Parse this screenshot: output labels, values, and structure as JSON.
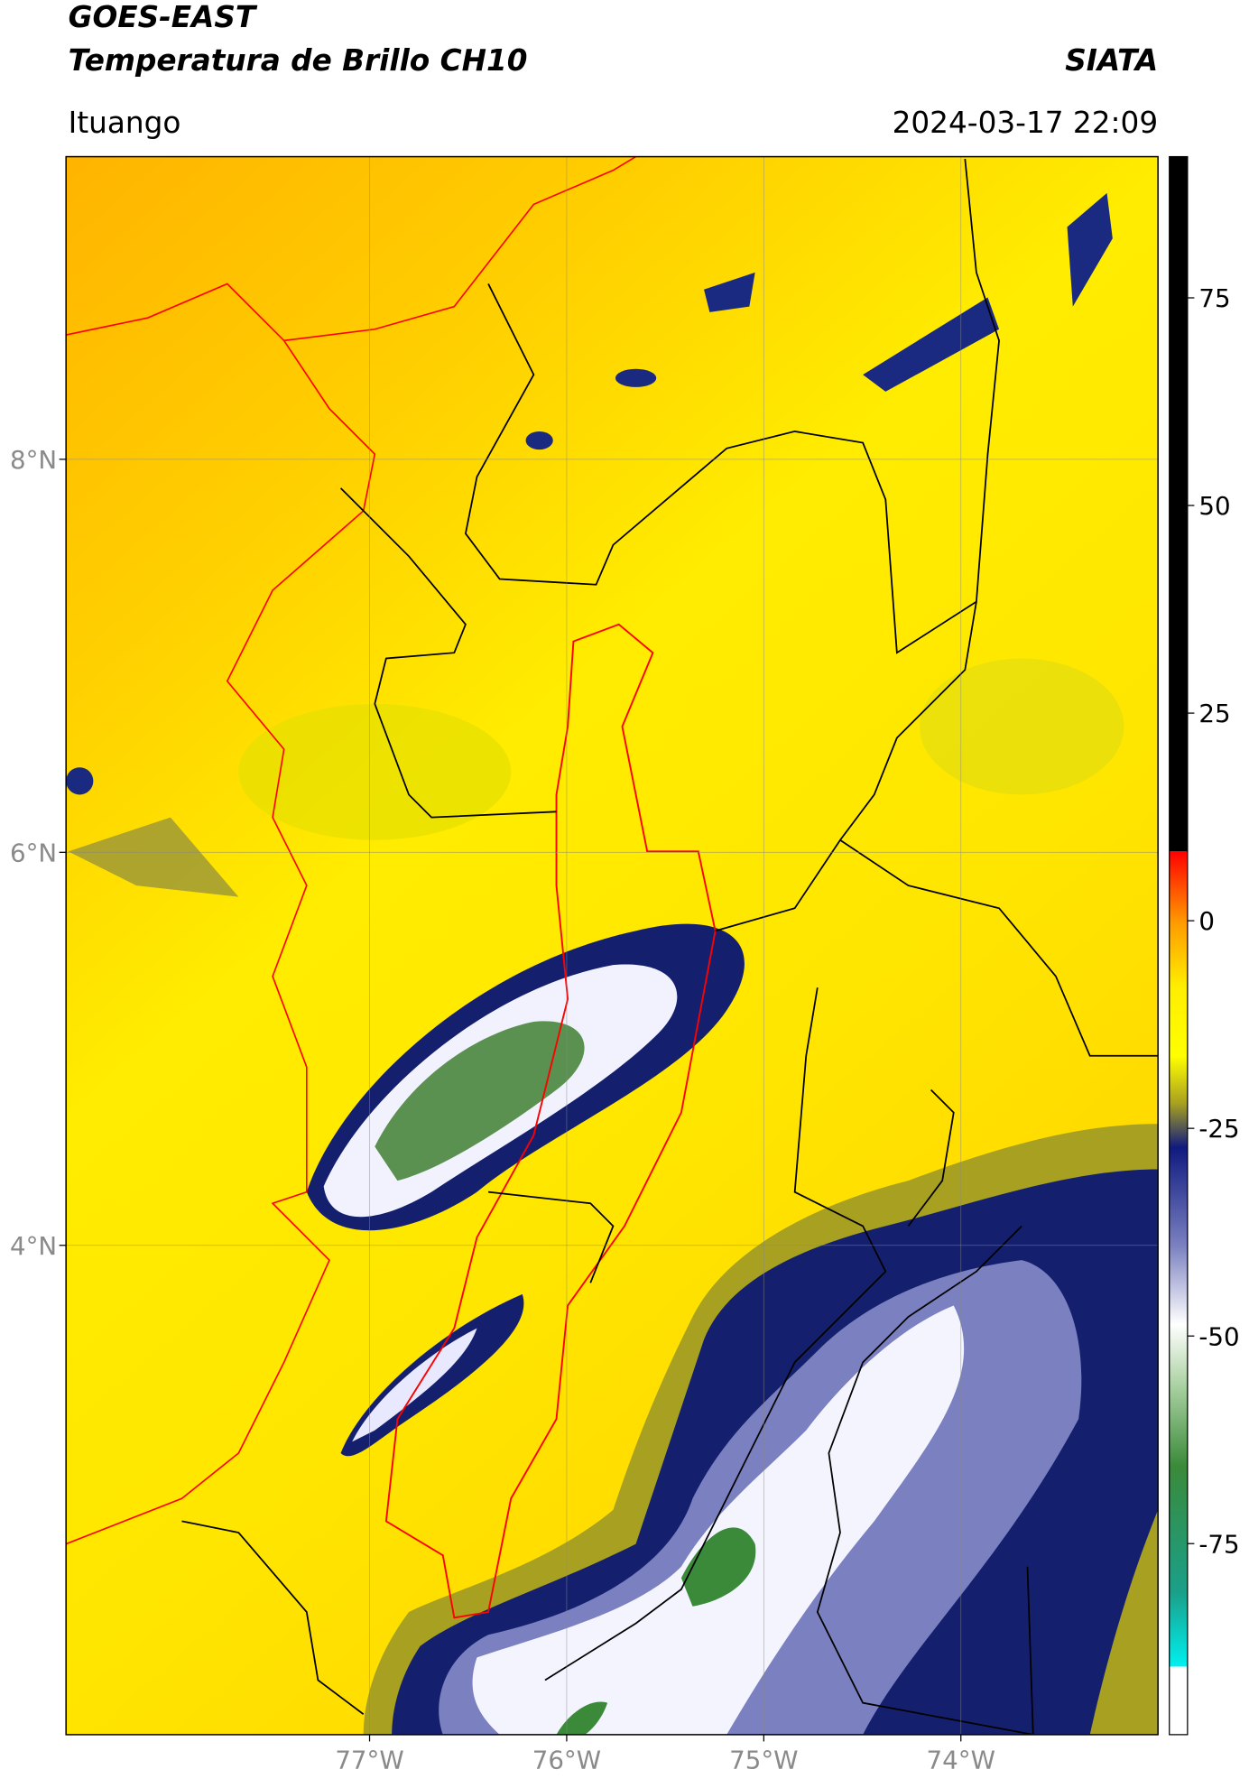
{
  "header": {
    "title": "GOES-EAST",
    "subtitle": "Temperatura de Brillo CH10",
    "source": "SIATA",
    "location": "Ituango",
    "timestamp": "2024-03-17 22:09"
  },
  "map": {
    "xlim": [
      -78.54,
      -73.0
    ],
    "ylim": [
      1.51,
      9.54
    ],
    "xticks": [
      {
        "value": -77,
        "label": "77°W"
      },
      {
        "value": -76,
        "label": "76°W"
      },
      {
        "value": -75,
        "label": "75°W"
      },
      {
        "value": -74,
        "label": "74°W"
      }
    ],
    "yticks": [
      {
        "value": 8,
        "label": "8°N"
      },
      {
        "value": 6,
        "label": "6°N"
      },
      {
        "value": 4,
        "label": "4°N"
      }
    ]
  },
  "colorbar": {
    "lim": [
      -98,
      92
    ],
    "ticks": [
      75,
      50,
      25,
      0,
      -25,
      -50,
      -75
    ]
  }
}
